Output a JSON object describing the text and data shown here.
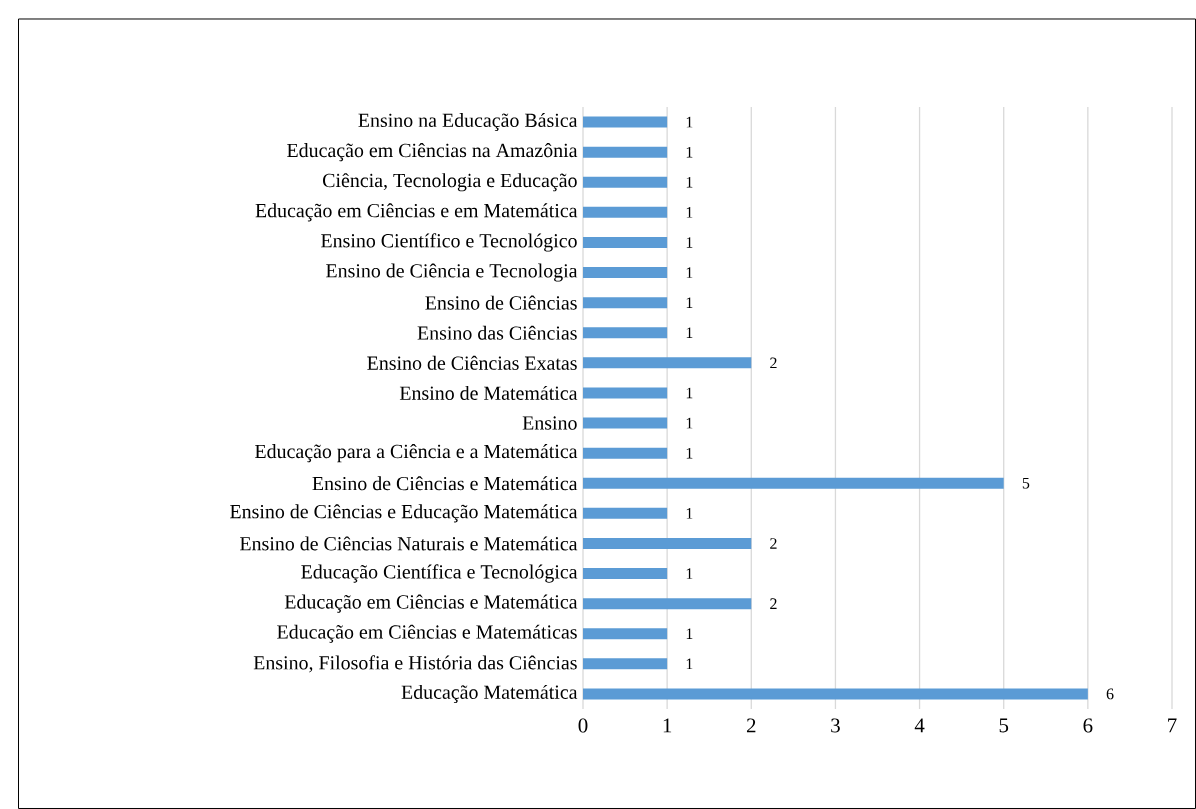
{
  "chart_data": {
    "type": "bar",
    "orientation": "horizontal",
    "categories": [
      "Ensino na Educação Básica",
      "Educação em Ciências na Amazônia",
      "Ciência, Tecnologia e Educação",
      "Educação em Ciências e em Matemática",
      "Ensino Científico e Tecnológico",
      "Ensino de Ciência e Tecnologia",
      "Ensino de Ciências",
      "Ensino das Ciências",
      "Ensino de Ciências Exatas",
      "Ensino de Matemática",
      "Ensino",
      "Educação para a Ciência e a Matemática",
      "Ensino de Ciências e Matemática",
      "Ensino de Ciências e Educação Matemática",
      "Ensino de Ciências Naturais e Matemática",
      "Educação Científica e Tecnológica",
      "Educação em Ciências e Matemática",
      "Educação em Ciências e Matemáticas",
      "Ensino, Filosofia e História das Ciências",
      "Educação Matemática"
    ],
    "values": [
      1,
      1,
      1,
      1,
      1,
      1,
      1,
      1,
      2,
      1,
      1,
      1,
      5,
      1,
      2,
      1,
      2,
      1,
      1,
      6
    ],
    "color": "#5b9bd5",
    "xlim": [
      0,
      7
    ],
    "xticks": [
      0,
      1,
      2,
      3,
      4,
      5,
      6,
      7
    ],
    "grid": "x",
    "data_labels": true
  }
}
